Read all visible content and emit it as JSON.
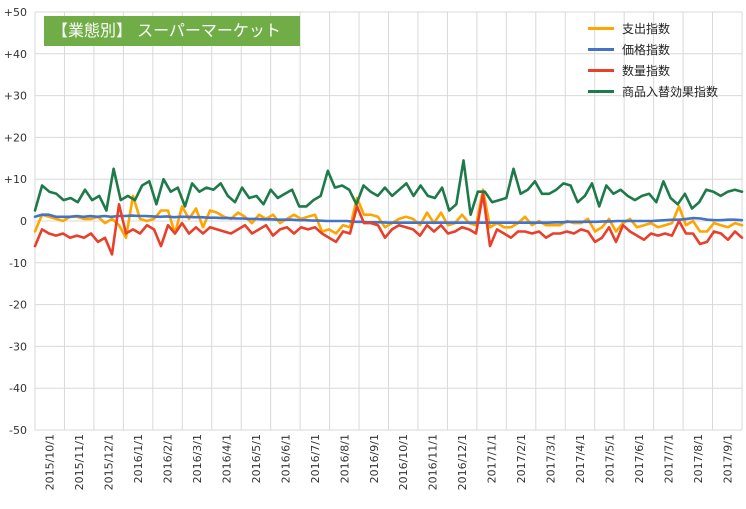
{
  "title": "【業態別】 スーパーマーケット",
  "chart_data": {
    "type": "line",
    "ylim": [
      -50,
      50
    ],
    "y_ticks": [
      "+50",
      "+40",
      "+30",
      "+20",
      "+10",
      "0",
      "-10",
      "-20",
      "-30",
      "-40",
      "-50"
    ],
    "x_tick_labels": [
      "2015/10/1",
      "2015/11/1",
      "2015/12/1",
      "2016/1/1",
      "2016/2/1",
      "2016/3/1",
      "2016/4/1",
      "2016/5/1",
      "2016/6/1",
      "2016/7/1",
      "2016/8/1",
      "2016/9/1",
      "2016/10/1",
      "2016/11/1",
      "2016/12/1",
      "2017/1/1",
      "2017/2/1",
      "2017/3/1",
      "2017/4/1",
      "2017/5/1",
      "2017/6/1",
      "2017/7/1",
      "2017/8/1",
      "2017/9/1"
    ],
    "grid": true,
    "legend_position": "top-right",
    "series": [
      {
        "name": "支出指数",
        "color": "#ffa500",
        "values": [
          -2.5,
          1.5,
          1,
          0.5,
          0,
          1,
          1,
          0.5,
          0.5,
          1,
          -0.5,
          0.5,
          -1,
          -4,
          6,
          0.5,
          0,
          0.5,
          2.5,
          2.5,
          -3,
          3.5,
          0.5,
          3,
          -1.5,
          2.5,
          2,
          1,
          0.5,
          2,
          1,
          -0.5,
          1.5,
          0.5,
          1.5,
          -0.5,
          0.5,
          1.5,
          0.5,
          1,
          1.5,
          -2.5,
          -2,
          -3,
          -1,
          -1.5,
          5.5,
          1.5,
          1.5,
          1,
          -1.5,
          -0.5,
          0.5,
          1,
          0.5,
          -1,
          2,
          -0.5,
          2,
          -1,
          -0.5,
          1.5,
          -0.5,
          -1,
          7.5,
          -1.5,
          -0.5,
          -1.5,
          -1.5,
          -0.5,
          1,
          -1,
          0,
          -1,
          -1,
          -1,
          0,
          -0.5,
          -0.5,
          0.5,
          -2.5,
          -1.5,
          0.5,
          -2.5,
          -0.5,
          0.5,
          -1.5,
          -1,
          -0.5,
          -1.5,
          -1,
          -0.5,
          3.5,
          -1,
          0,
          -2.5,
          -2.5,
          -0.5,
          -1,
          -1.5,
          -0.5,
          -1
        ]
      },
      {
        "name": "価格指数",
        "color": "#4472c4",
        "values": [
          1,
          1.5,
          1.5,
          1,
          1,
          1,
          1.2,
          1,
          1.2,
          1,
          1.2,
          1,
          1.2,
          1.2,
          1.3,
          1.2,
          1.2,
          1.1,
          1,
          1.1,
          0.9,
          1,
          1,
          0.9,
          0.9,
          0.8,
          0.8,
          0.7,
          0.7,
          0.6,
          0.6,
          0.5,
          0.5,
          0.4,
          0.4,
          0.3,
          0.3,
          0.3,
          0.2,
          0.2,
          0.1,
          0.1,
          0,
          0,
          0,
          0,
          -0.2,
          -0.2,
          -0.3,
          -0.3,
          -0.3,
          -0.4,
          -0.4,
          -0.4,
          -0.4,
          -0.4,
          -0.4,
          -0.4,
          -0.4,
          -0.4,
          -0.4,
          -0.4,
          -0.4,
          -0.4,
          -0.4,
          -0.4,
          -0.4,
          -0.4,
          -0.4,
          -0.4,
          -0.4,
          -0.4,
          -0.4,
          -0.4,
          -0.4,
          -0.3,
          -0.3,
          -0.2,
          -0.2,
          -0.2,
          -0.2,
          -0.2,
          -0.1,
          -0.1,
          0,
          0,
          0,
          0,
          0,
          0,
          0.1,
          0.2,
          0.3,
          0.3,
          0.5,
          0.7,
          0.6,
          0.3,
          0.2,
          0.2,
          0.3,
          0.3,
          0.2
        ]
      },
      {
        "name": "数量指数",
        "color": "#e8402a",
        "values": [
          -6,
          -2,
          -3,
          -3.5,
          -3,
          -4,
          -3.5,
          -4,
          -3,
          -5,
          -4,
          -8,
          4,
          -3,
          -2,
          -3,
          -1,
          -2,
          -6,
          -1,
          -3,
          -0.5,
          -3,
          -1.5,
          -3,
          -1.5,
          -2,
          -2.5,
          -3,
          -2,
          -1,
          -3,
          -2,
          -1,
          -3.5,
          -2,
          -1.5,
          -3,
          -1.5,
          -2,
          -1.5,
          -3,
          -4,
          -5,
          -2.5,
          -3,
          3.5,
          -0.5,
          -0.5,
          -1,
          -4,
          -2,
          -1,
          -1.5,
          -2,
          -3.5,
          -1,
          -2.5,
          -1,
          -3,
          -2.5,
          -1.5,
          -2,
          -3,
          6.5,
          -6,
          -2,
          -3,
          -4,
          -2.5,
          -2.5,
          -3,
          -2.5,
          -4,
          -3,
          -3,
          -2.5,
          -3,
          -2,
          -2.5,
          -5,
          -4,
          -1.5,
          -5,
          -1,
          -2.5,
          -3.5,
          -4.5,
          -3,
          -3.5,
          -3,
          -3.5,
          0,
          -3,
          -3,
          -5.5,
          -5,
          -2.5,
          -3,
          -4.5,
          -2.5,
          -4
        ]
      },
      {
        "name": "商品入替効果指数",
        "color": "#1f7a4a",
        "values": [
          2.5,
          8.5,
          7,
          6.5,
          5,
          5.5,
          4.5,
          7.5,
          5,
          6,
          2.5,
          12.5,
          5,
          6,
          5,
          8.5,
          9.5,
          4,
          10,
          7,
          8,
          3.5,
          9,
          7,
          8,
          7.5,
          9,
          6,
          4.5,
          8,
          5.5,
          6,
          4,
          7.5,
          5.5,
          6.5,
          7.5,
          3.5,
          3.5,
          5,
          6,
          12,
          8,
          8.5,
          7.5,
          4,
          8.5,
          7,
          6,
          8,
          6,
          7.5,
          9,
          6,
          8.5,
          6,
          5.5,
          8,
          2.5,
          4,
          14.5,
          1.5,
          7,
          7,
          4.5,
          5,
          5.5,
          12.5,
          6.5,
          7.5,
          9.5,
          6.5,
          6.5,
          7.5,
          9,
          8.5,
          4.5,
          6,
          9,
          3.5,
          8.5,
          6.5,
          7.5,
          6,
          5,
          6,
          6.5,
          4.5,
          9.5,
          5.5,
          4,
          6.5,
          3,
          4.5,
          7.5,
          7,
          6,
          7,
          7.5,
          7
        ]
      }
    ]
  }
}
